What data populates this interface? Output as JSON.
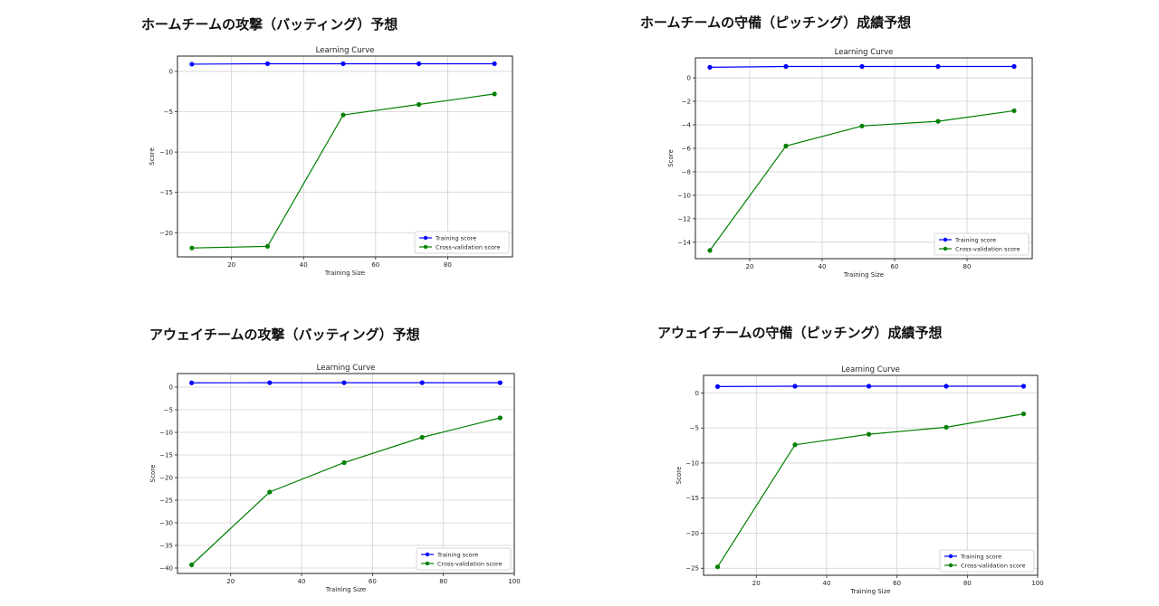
{
  "titles": [
    "ホームチームの攻撃（バッティング）予想",
    "ホームチームの守備（ピッチング）成績予想",
    "アウェイチームの攻撃（バッティング）予想",
    "アウェイチームの守備（ピッチング）成績予想"
  ],
  "colors": {
    "training": "#0000ff",
    "cv": "#008000"
  },
  "chart_data": [
    {
      "type": "line",
      "title": "Learning Curve",
      "xlabel": "Training Size",
      "ylabel": "Score",
      "xlim": [
        5,
        98
      ],
      "ylim": [
        -23.0,
        1.9
      ],
      "xticks": [
        20,
        40,
        60,
        80
      ],
      "yticks": [
        0,
        -5,
        -10,
        -15,
        -20
      ],
      "grid": true,
      "legend_position": "lower-right",
      "series": [
        {
          "name": "Training score",
          "color": "#0000ff",
          "x": [
            9,
            30,
            51,
            72,
            93
          ],
          "y": [
            0.9,
            0.95,
            0.95,
            0.95,
            0.95
          ]
        },
        {
          "name": "Cross-validation score",
          "color": "#008000",
          "x": [
            9,
            30,
            51,
            72,
            93
          ],
          "y": [
            -21.9,
            -21.7,
            -5.4,
            -4.1,
            -2.8
          ]
        }
      ]
    },
    {
      "type": "line",
      "title": "Learning Curve",
      "xlabel": "Training Size",
      "ylabel": "Score",
      "xlim": [
        5,
        98
      ],
      "ylim": [
        -15.4,
        1.7
      ],
      "xticks": [
        20,
        40,
        60,
        80
      ],
      "yticks": [
        0,
        -2,
        -4,
        -6,
        -8,
        -10,
        -12,
        -14
      ],
      "grid": true,
      "legend_position": "lower-right",
      "series": [
        {
          "name": "Training score",
          "color": "#0000ff",
          "x": [
            9,
            30,
            51,
            72,
            93
          ],
          "y": [
            0.9,
            0.97,
            0.97,
            0.97,
            0.97
          ]
        },
        {
          "name": "Cross-validation score",
          "color": "#008000",
          "x": [
            9,
            30,
            51,
            72,
            93
          ],
          "y": [
            -14.7,
            -5.8,
            -4.1,
            -3.7,
            -2.8
          ]
        }
      ]
    },
    {
      "type": "line",
      "title": "Learning Curve",
      "xlabel": "Training Size",
      "ylabel": "Score",
      "xlim": [
        5,
        100
      ],
      "ylim": [
        -41.2,
        3.0
      ],
      "xticks": [
        20,
        40,
        60,
        80,
        100
      ],
      "yticks": [
        0,
        -5,
        -10,
        -15,
        -20,
        -25,
        -30,
        -35,
        -40
      ],
      "grid": true,
      "legend_position": "lower-right",
      "series": [
        {
          "name": "Training score",
          "color": "#0000ff",
          "x": [
            9,
            31,
            52,
            74,
            96
          ],
          "y": [
            0.95,
            0.97,
            0.97,
            0.97,
            0.97
          ]
        },
        {
          "name": "Cross-validation score",
          "color": "#008000",
          "x": [
            9,
            31,
            52,
            74,
            96
          ],
          "y": [
            -39.3,
            -23.2,
            -16.7,
            -11.1,
            -6.8
          ]
        }
      ]
    },
    {
      "type": "line",
      "title": "Learning Curve",
      "xlabel": "Training Size",
      "ylabel": "Score",
      "xlim": [
        5,
        100
      ],
      "ylim": [
        -26.0,
        2.5
      ],
      "xticks": [
        20,
        40,
        60,
        80,
        100
      ],
      "yticks": [
        0,
        -5,
        -10,
        -15,
        -20,
        -25
      ],
      "grid": true,
      "legend_position": "lower-right",
      "series": [
        {
          "name": "Training score",
          "color": "#0000ff",
          "x": [
            9,
            31,
            52,
            74,
            96
          ],
          "y": [
            0.9,
            0.95,
            0.95,
            0.95,
            0.95
          ]
        },
        {
          "name": "Cross-validation score",
          "color": "#008000",
          "x": [
            9,
            31,
            52,
            74,
            96
          ],
          "y": [
            -24.8,
            -7.4,
            -5.9,
            -4.9,
            -3.0
          ]
        }
      ]
    }
  ]
}
